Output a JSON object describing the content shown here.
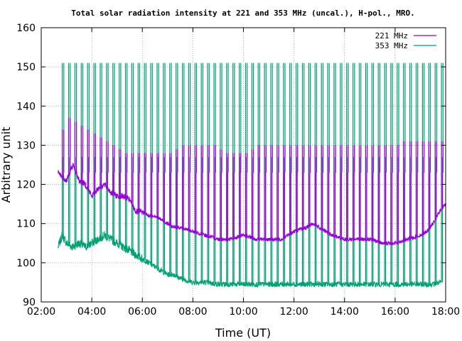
{
  "chart_data": {
    "type": "line",
    "title": "Total solar radiation intensity at 221 and 353 MHz (uncal.), H-pol., MRO.",
    "xlabel": "Time (UT)",
    "ylabel": "Arbitrary unit",
    "xlim": [
      "02:00",
      "18:00"
    ],
    "ylim": [
      90,
      160
    ],
    "xticks": [
      "02:00",
      "04:00",
      "06:00",
      "08:00",
      "10:00",
      "12:00",
      "14:00",
      "16:00",
      "18:00"
    ],
    "yticks": [
      90,
      100,
      110,
      120,
      130,
      140,
      150,
      160
    ],
    "grid": true,
    "legend_position": "top-right",
    "calibration_spikes": {
      "start": "02:50",
      "end": "17:50",
      "interval_minutes": 15,
      "peak_353": 151,
      "peak_221": [
        134,
        137,
        136,
        135,
        134,
        133,
        132,
        131,
        130,
        129,
        128,
        128,
        128,
        128,
        128,
        128,
        128,
        128,
        129,
        130,
        130,
        130,
        130,
        130,
        130,
        129,
        128,
        128,
        128,
        128,
        129,
        130,
        130,
        130,
        130,
        130,
        130,
        130,
        130,
        130,
        130,
        130,
        130,
        130,
        130,
        130,
        130,
        130,
        130,
        130,
        130,
        130,
        130,
        130,
        131,
        131,
        131,
        131,
        131,
        131,
        131
      ],
      "baseline_221_during_cal": 123,
      "baseline_353_during_cal": 127
    },
    "series": [
      {
        "name": "221 MHz",
        "color": "#9400d3",
        "x": [
          "02:40",
          "02:50",
          "03:00",
          "03:15",
          "03:30",
          "03:45",
          "04:00",
          "04:15",
          "04:30",
          "04:45",
          "05:00",
          "05:15",
          "05:30",
          "05:45",
          "06:00",
          "06:15",
          "06:30",
          "06:45",
          "07:00",
          "07:15",
          "07:30",
          "08:00",
          "08:30",
          "09:00",
          "09:30",
          "10:00",
          "10:30",
          "11:00",
          "11:30",
          "12:00",
          "12:30",
          "12:45",
          "13:00",
          "13:15",
          "13:30",
          "14:00",
          "14:30",
          "15:00",
          "15:30",
          "16:00",
          "16:30",
          "17:00",
          "17:15",
          "17:30",
          "17:45",
          "18:00"
        ],
        "values": [
          123,
          122,
          121,
          125,
          121,
          120,
          117,
          119,
          120,
          118,
          117,
          117,
          116,
          113,
          113,
          112,
          112,
          111,
          110,
          109,
          109,
          108,
          107,
          106,
          106,
          107,
          106,
          106,
          106,
          108,
          109,
          110,
          109,
          108,
          107,
          106,
          106,
          106,
          105,
          105,
          106,
          107,
          108,
          110,
          113,
          115
        ]
      },
      {
        "name": "353 MHz",
        "color": "#009e73",
        "x": [
          "02:40",
          "02:50",
          "03:00",
          "03:15",
          "03:30",
          "03:45",
          "04:00",
          "04:15",
          "04:30",
          "04:45",
          "05:00",
          "05:15",
          "05:30",
          "05:45",
          "06:00",
          "06:15",
          "06:30",
          "06:45",
          "07:00",
          "07:15",
          "07:30",
          "08:00",
          "08:30",
          "09:00",
          "09:30",
          "10:00",
          "10:30",
          "11:00",
          "11:30",
          "12:00",
          "12:30",
          "13:00",
          "13:30",
          "14:00",
          "14:30",
          "15:00",
          "15:30",
          "16:00",
          "16:30",
          "17:00",
          "17:30",
          "17:50"
        ],
        "values": [
          104,
          107,
          105,
          104,
          105,
          104,
          105,
          106,
          107,
          106,
          105,
          104,
          103,
          102,
          101,
          100,
          99,
          98,
          97,
          97,
          96,
          95,
          95,
          94.5,
          94.5,
          94.5,
          94.5,
          94.5,
          94.5,
          94.5,
          94.5,
          94.5,
          94.5,
          94.5,
          94.5,
          94.5,
          94.5,
          94.5,
          94.5,
          94.5,
          94.5,
          95
        ]
      }
    ]
  }
}
